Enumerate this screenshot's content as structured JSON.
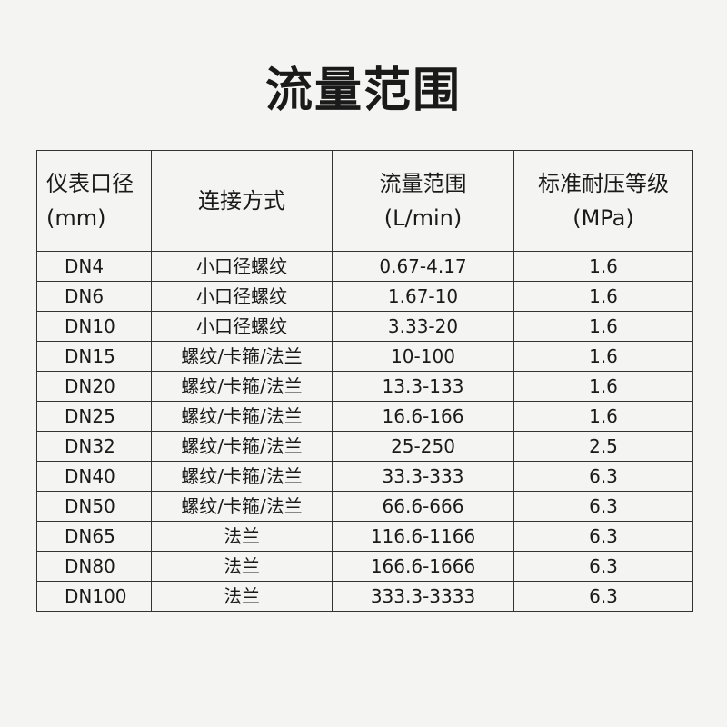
{
  "title": "流量范围",
  "table": {
    "headers": [
      {
        "line1": "仪表口径",
        "line2": "(mm)"
      },
      {
        "line1": "连接方式",
        "line2": ""
      },
      {
        "line1": "流量范围",
        "line2": "(L/min)"
      },
      {
        "line1": "标准耐压等级",
        "line2": "(MPa)"
      }
    ],
    "rows": [
      {
        "size": "DN4",
        "connection": "小口径螺纹",
        "flow": "0.67-4.17",
        "pressure": "1.6"
      },
      {
        "size": "DN6",
        "connection": "小口径螺纹",
        "flow": "1.67-10",
        "pressure": "1.6"
      },
      {
        "size": "DN10",
        "connection": "小口径螺纹",
        "flow": "3.33-20",
        "pressure": "1.6"
      },
      {
        "size": "DN15",
        "connection": "螺纹/卡箍/法兰",
        "flow": "10-100",
        "pressure": "1.6"
      },
      {
        "size": "DN20",
        "connection": "螺纹/卡箍/法兰",
        "flow": "13.3-133",
        "pressure": "1.6"
      },
      {
        "size": "DN25",
        "connection": "螺纹/卡箍/法兰",
        "flow": "16.6-166",
        "pressure": "1.6"
      },
      {
        "size": "DN32",
        "connection": "螺纹/卡箍/法兰",
        "flow": "25-250",
        "pressure": "2.5"
      },
      {
        "size": "DN40",
        "connection": "螺纹/卡箍/法兰",
        "flow": "33.3-333",
        "pressure": "6.3"
      },
      {
        "size": "DN50",
        "connection": "螺纹/卡箍/法兰",
        "flow": "66.6-666",
        "pressure": "6.3"
      },
      {
        "size": "DN65",
        "connection": "法兰",
        "flow": "116.6-1166",
        "pressure": "6.3"
      },
      {
        "size": "DN80",
        "connection": "法兰",
        "flow": "166.6-1666",
        "pressure": "6.3"
      },
      {
        "size": "DN100",
        "connection": "法兰",
        "flow": "333.3-3333",
        "pressure": "6.3"
      }
    ]
  }
}
